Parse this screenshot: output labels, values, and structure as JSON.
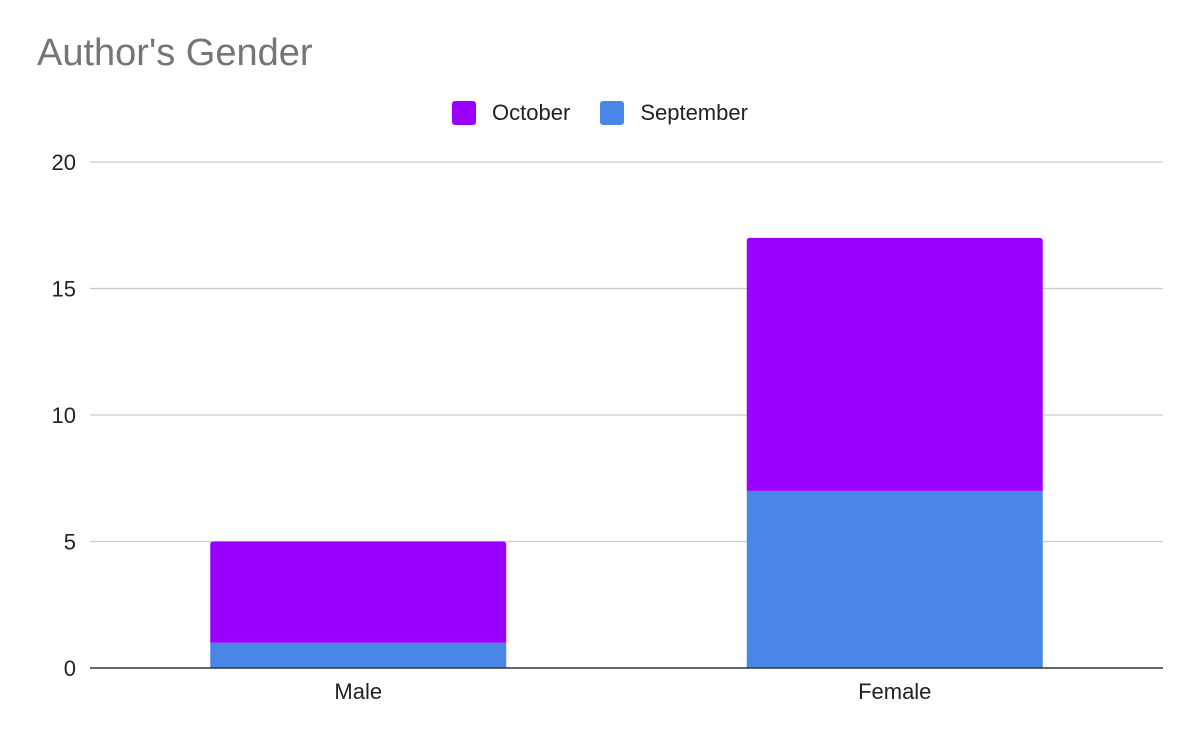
{
  "chart_data": {
    "type": "bar",
    "stacked": true,
    "title": "Author's Gender",
    "xlabel": "",
    "ylabel": "",
    "categories": [
      "Male",
      "Female"
    ],
    "series": [
      {
        "name": "September",
        "values": [
          1,
          7
        ],
        "color": "#4a86e8"
      },
      {
        "name": "October",
        "values": [
          4,
          10
        ],
        "color": "#9900ff"
      }
    ],
    "legend_order": [
      "October",
      "September"
    ],
    "ylim": [
      0,
      20
    ],
    "yticks": [
      0,
      5,
      10,
      15,
      20
    ],
    "grid": true,
    "legend_position": "top-center"
  },
  "colors": {
    "gridline": "#cccccc",
    "axis": "#333333",
    "title": "#757575",
    "text": "#222222"
  }
}
